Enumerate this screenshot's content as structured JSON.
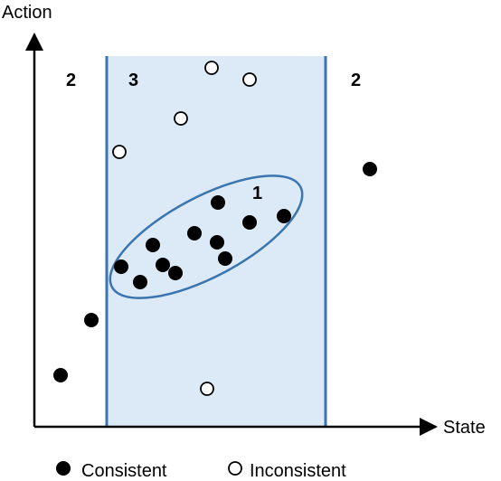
{
  "axes": {
    "y_label": "Action",
    "x_label": "State"
  },
  "regions": [
    {
      "label": "2"
    },
    {
      "label": "3"
    },
    {
      "label": "2"
    },
    {
      "label": "1"
    }
  ],
  "legend": {
    "items": [
      {
        "label": "Consistent"
      },
      {
        "label": "Inconsistent"
      }
    ]
  }
}
